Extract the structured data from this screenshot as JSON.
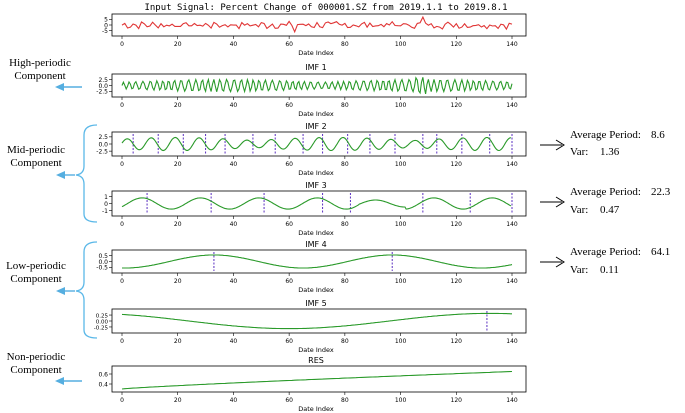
{
  "colors": {
    "input_signal": "#e03535",
    "imf": "#2a9a2a",
    "dashed_marker": "#5a2fc0",
    "brace": "#5bb8e8",
    "arrow_left": "#55aee0"
  },
  "input_signal": {
    "title": "Input Signal: Percent Change of 000001.SZ from 2019.1.1 to 2019.8.1",
    "yticks": [
      "5",
      "0",
      "-5"
    ],
    "xticks": [
      "0",
      "20",
      "40",
      "60",
      "80",
      "100",
      "120",
      "140"
    ],
    "xlabel": "Date Index"
  },
  "panels": [
    {
      "id": "imf1",
      "title": "IMF 1",
      "yticks": [
        "2.5",
        "0.0",
        "-2.5"
      ],
      "xticks": [
        "0",
        "20",
        "40",
        "60",
        "80",
        "100",
        "120",
        "140"
      ],
      "xlabel": "Date Index"
    },
    {
      "id": "imf2",
      "title": "IMF 2",
      "yticks": [
        "2.5",
        "0.0",
        "-2.5"
      ],
      "xticks": [
        "0",
        "20",
        "40",
        "60",
        "80",
        "100",
        "120",
        "140"
      ],
      "xlabel": "Date Index"
    },
    {
      "id": "imf3",
      "title": "IMF 3",
      "yticks": [
        "1",
        "0",
        "-1"
      ],
      "xticks": [
        "0",
        "20",
        "40",
        "60",
        "80",
        "100",
        "120",
        "140"
      ],
      "xlabel": "Date Index"
    },
    {
      "id": "imf4",
      "title": "IMF 4",
      "yticks": [
        "0.5",
        "0.0",
        "-0.5"
      ],
      "xticks": [
        "0",
        "20",
        "40",
        "60",
        "80",
        "100",
        "120",
        "140"
      ],
      "xlabel": "Date Index"
    },
    {
      "id": "imf5",
      "title": "IMF 5",
      "yticks": [
        "0.25",
        "0.00",
        "-0.25"
      ],
      "xticks": [
        "0",
        "20",
        "40",
        "60",
        "80",
        "100",
        "120",
        "140"
      ],
      "xlabel": "Date Index"
    },
    {
      "id": "res",
      "title": "RES",
      "yticks": [
        "0.6",
        "0.4"
      ],
      "xticks": [
        "0",
        "20",
        "40",
        "60",
        "80",
        "100",
        "120",
        "140"
      ],
      "xlabel": "Date Index"
    }
  ],
  "left_labels": {
    "high": [
      "High-periodic",
      "Component"
    ],
    "mid": [
      "Mid-periodic",
      "Component"
    ],
    "low": [
      "Low-periodic",
      "Component"
    ],
    "non": [
      "Non-periodic",
      "Component"
    ]
  },
  "stats": [
    {
      "id": "imf2",
      "period_label": "Average Period:",
      "period_value": "8.6",
      "var_label": "Var:",
      "var_value": "1.36"
    },
    {
      "id": "imf3",
      "period_label": "Average Period:",
      "period_value": "22.3",
      "var_label": "Var:",
      "var_value": "0.47"
    },
    {
      "id": "imf4",
      "period_label": "Average Period:",
      "period_value": "64.1",
      "var_label": "Var:",
      "var_value": "0.11"
    }
  ]
}
